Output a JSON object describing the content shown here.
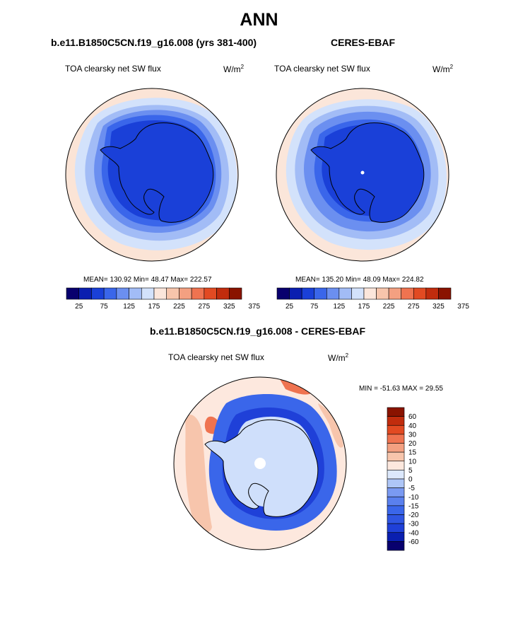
{
  "page_title": "ANN",
  "colors": {
    "sequential_palette": [
      "#08006e",
      "#0a1fb0",
      "#1a40d8",
      "#3a66ea",
      "#6b8ff0",
      "#a2bcf6",
      "#d3e2fb",
      "#fbe6db",
      "#f7c5ac",
      "#f3a081",
      "#ef7350",
      "#e24a22",
      "#c12c0d",
      "#8a1300"
    ],
    "diff_palette": [
      "#08006e",
      "#0a1fb0",
      "#1f40d8",
      "#3a66ea",
      "#6a8ef0",
      "#9db8f5",
      "#cfdffb",
      "#fde8de",
      "#f7c5ac",
      "#f3a081",
      "#ef7350",
      "#e24a22",
      "#b72c0d"
    ],
    "ocean_model": "#fbe4d6",
    "ocean_obs": "#fbe6da",
    "coast": "#000000"
  },
  "chart_data": [
    {
      "type": "heatmap",
      "projection": "south-polar-stereographic",
      "case_title": "b.e11.B1850C5CN.f19_g16.008 (yrs 381-400)",
      "variable": "TOA clearsky net SW flux",
      "units_base": "W/m",
      "units_exp": "2",
      "stats": {
        "mean": 130.92,
        "min": 48.47,
        "max": 222.57
      },
      "stats_text": "MEAN= 130.92  Min=  48.47  Max= 222.57",
      "colorbar": {
        "ticks": [
          25,
          75,
          125,
          175,
          225,
          275,
          325,
          375
        ],
        "levels": 14,
        "orientation": "horizontal"
      }
    },
    {
      "type": "heatmap",
      "projection": "south-polar-stereographic",
      "case_title": "CERES-EBAF",
      "variable": "TOA clearsky net SW flux",
      "units_base": "W/m",
      "units_exp": "2",
      "stats": {
        "mean": 135.2,
        "min": 48.09,
        "max": 224.82
      },
      "stats_text": "MEAN= 135.20  Min=  48.09  Max= 224.82",
      "colorbar": {
        "ticks": [
          25,
          75,
          125,
          175,
          225,
          275,
          325,
          375
        ],
        "levels": 14,
        "orientation": "horizontal"
      }
    },
    {
      "type": "heatmap",
      "projection": "south-polar-stereographic",
      "case_title": "b.e11.B1850C5CN.f19_g16.008 - CERES-EBAF",
      "variable": "TOA clearsky net SW flux",
      "units_base": "W/m",
      "units_exp": "2",
      "stats": {
        "min": -51.63,
        "max": 29.55
      },
      "stats_text": "MIN = -51.63 MAX =  29.55",
      "colorbar": {
        "ticks": [
          "60",
          "40",
          "30",
          "20",
          "15",
          "10",
          "5",
          "0",
          "-5",
          "-10",
          "-15",
          "-20",
          "-30",
          "-40",
          "-60"
        ],
        "orientation": "vertical"
      }
    }
  ]
}
